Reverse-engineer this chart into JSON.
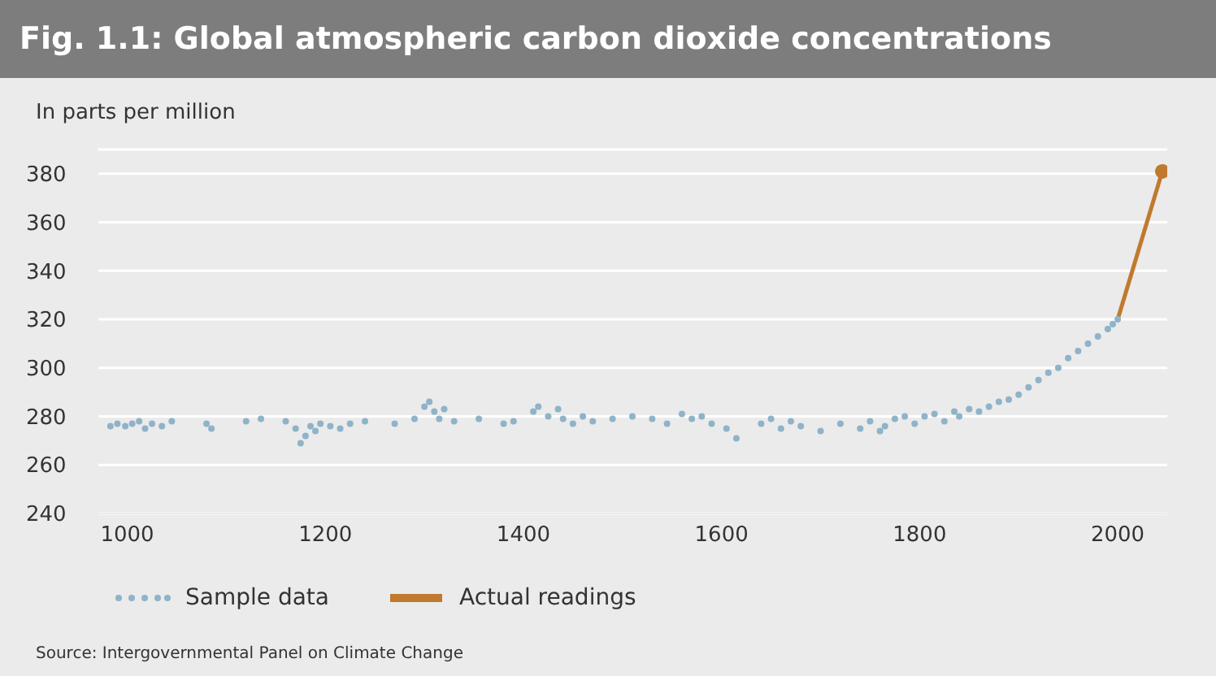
{
  "chart_data": {
    "type": "scatter",
    "title": "Fig. 1.1: Global atmospheric carbon dioxide concentrations",
    "ylabel": "In parts per million",
    "annotations": [
      "Source: Intergovernmental Panel on Climate Change"
    ],
    "xlim": [
      970,
      2050
    ],
    "xticks": [
      1000,
      1200,
      1400,
      1600,
      1800,
      2000
    ],
    "ylim": [
      240,
      390
    ],
    "yticks": [
      240,
      260,
      280,
      300,
      320,
      340,
      360,
      380
    ],
    "grid": "y",
    "legend": "bottom",
    "series": [
      {
        "name": "Sample data",
        "color": "#8fb3c8",
        "x": [
          983,
          990,
          998,
          1005,
          1012,
          1018,
          1025,
          1035,
          1045,
          1080,
          1085,
          1120,
          1135,
          1160,
          1170,
          1175,
          1180,
          1185,
          1190,
          1195,
          1205,
          1215,
          1225,
          1240,
          1270,
          1290,
          1300,
          1305,
          1310,
          1315,
          1320,
          1330,
          1355,
          1380,
          1390,
          1410,
          1415,
          1425,
          1435,
          1440,
          1450,
          1460,
          1470,
          1490,
          1510,
          1530,
          1545,
          1560,
          1570,
          1580,
          1590,
          1605,
          1615,
          1640,
          1650,
          1660,
          1670,
          1680,
          1700,
          1720,
          1740,
          1750,
          1760,
          1765,
          1775,
          1785,
          1795,
          1805,
          1815,
          1825,
          1835,
          1840,
          1850,
          1860,
          1870,
          1880,
          1890,
          1900,
          1910,
          1920,
          1930,
          1940,
          1950,
          1960,
          1970,
          1980,
          1990,
          1995,
          2000
        ],
        "values": [
          276,
          277,
          276,
          277,
          278,
          275,
          277,
          276,
          278,
          277,
          275,
          278,
          279,
          278,
          275,
          269,
          272,
          276,
          274,
          277,
          276,
          275,
          277,
          278,
          277,
          279,
          284,
          286,
          282,
          279,
          283,
          278,
          279,
          277,
          278,
          282,
          284,
          280,
          283,
          279,
          277,
          280,
          278,
          279,
          280,
          279,
          277,
          281,
          279,
          280,
          277,
          275,
          271,
          277,
          279,
          275,
          278,
          276,
          274,
          277,
          275,
          278,
          274,
          276,
          279,
          280,
          277,
          280,
          281,
          278,
          282,
          280,
          283,
          282,
          284,
          286,
          287,
          289,
          292,
          295,
          298,
          300,
          304,
          307,
          310,
          313,
          316,
          318,
          320
        ]
      },
      {
        "name": "Actual readings",
        "type": "line",
        "color": "#c07a2e",
        "marker": "circle",
        "x": [
          2000,
          2045
        ],
        "values": [
          320,
          381
        ]
      }
    ]
  }
}
